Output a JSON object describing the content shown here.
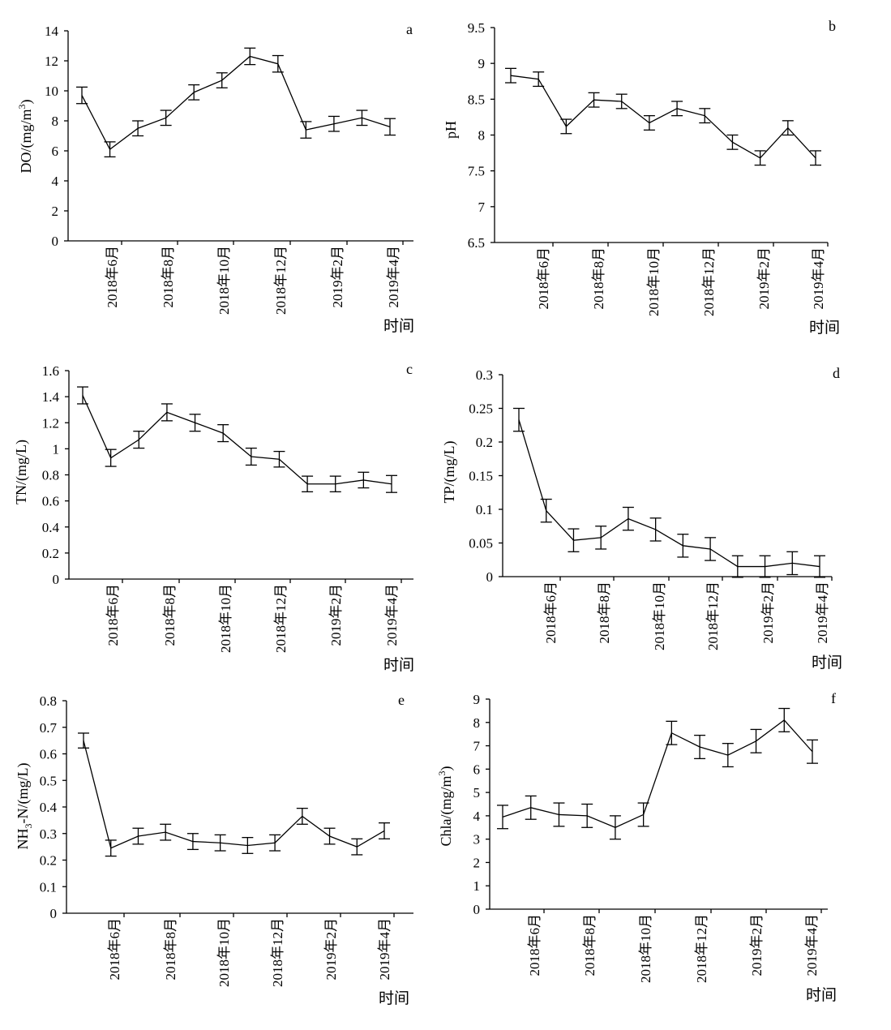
{
  "chart_data": [
    {
      "panel": "a",
      "type": "line",
      "ylabel": "DO/(mg/m3)",
      "ylabel_base": "DO/(mg/m",
      "ylabel_sup": "3",
      "ylabel_tail": ")",
      "xlabel": "时间",
      "ylim": [
        0,
        14
      ],
      "yticks": [
        "0",
        "2",
        "4",
        "6",
        "8",
        "10",
        "12",
        "14"
      ],
      "tick_labels": [
        "2018年6月",
        "2018年8月",
        "2018年10月",
        "2018年12月",
        "2019年2月",
        "2019年4月"
      ],
      "values": [
        9.7,
        6.1,
        7.5,
        8.2,
        9.9,
        10.7,
        12.3,
        11.8,
        7.4,
        7.8,
        8.2,
        7.6
      ],
      "errors": [
        0.55,
        0.5,
        0.5,
        0.5,
        0.5,
        0.5,
        0.55,
        0.55,
        0.55,
        0.5,
        0.5,
        0.55
      ]
    },
    {
      "panel": "b",
      "type": "line",
      "ylabel": "pH",
      "xlabel": "时间",
      "ylim": [
        6.5,
        9.5
      ],
      "yticks": [
        "6.5",
        "7",
        "7.5",
        "8",
        "8.5",
        "9",
        "9.5"
      ],
      "tick_labels": [
        "2018年6月",
        "2018年8月",
        "2018年10月",
        "2018年12月",
        "2019年2月",
        "2019年4月"
      ],
      "values": [
        8.83,
        8.78,
        8.12,
        8.49,
        8.47,
        8.17,
        8.37,
        8.27,
        7.9,
        7.68,
        8.1,
        7.68
      ],
      "errors": [
        0.1,
        0.1,
        0.1,
        0.1,
        0.1,
        0.1,
        0.1,
        0.1,
        0.1,
        0.1,
        0.1,
        0.1
      ]
    },
    {
      "panel": "c",
      "type": "line",
      "ylabel": "TN/(mg/L)",
      "xlabel": "时间",
      "ylim": [
        0,
        1.6
      ],
      "yticks": [
        "0",
        "0.2",
        "0.4",
        "0.6",
        "0.8",
        "1",
        "1.2",
        "1.4",
        "1.6"
      ],
      "tick_labels": [
        "2018年6月",
        "2018年8月",
        "2018年10月",
        "2018年12月",
        "2019年2月",
        "2019年4月"
      ],
      "values": [
        1.41,
        0.93,
        1.07,
        1.28,
        1.2,
        1.12,
        0.94,
        0.92,
        0.73,
        0.73,
        0.76,
        0.73
      ],
      "errors": [
        0.065,
        0.065,
        0.065,
        0.065,
        0.065,
        0.065,
        0.065,
        0.06,
        0.06,
        0.06,
        0.06,
        0.065
      ]
    },
    {
      "panel": "d",
      "type": "line",
      "ylabel": "TP/(mg/L)",
      "xlabel": "时间",
      "ylim": [
        0,
        0.3
      ],
      "yticks": [
        "0",
        "0.05",
        "0.1",
        "0.15",
        "0.2",
        "0.25",
        "0.3"
      ],
      "tick_labels": [
        "2018年6月",
        "2018年8月",
        "2018年10月",
        "2018年12月",
        "2019年2月",
        "2019年4月"
      ],
      "values": [
        0.233,
        0.098,
        0.054,
        0.058,
        0.086,
        0.07,
        0.046,
        0.041,
        0.015,
        0.015,
        0.02,
        0.015
      ],
      "errors": [
        0.017,
        0.017,
        0.017,
        0.017,
        0.017,
        0.017,
        0.017,
        0.017,
        0.016,
        0.016,
        0.017,
        0.016
      ]
    },
    {
      "panel": "e",
      "type": "line",
      "ylabel": "NH3-N/(mg/L)",
      "ylabel_pre": "NH",
      "ylabel_sub": "3",
      "ylabel_post": "-N/(mg/L)",
      "xlabel": "时间",
      "ylim": [
        0,
        0.8
      ],
      "yticks": [
        "0",
        "0.1",
        "0.2",
        "0.3",
        "0.4",
        "0.5",
        "0.6",
        "0.7",
        "0.8"
      ],
      "tick_labels": [
        "2018年6月",
        "2018年8月",
        "2018年10月",
        "2018年12月",
        "2019年2月",
        "2019年4月"
      ],
      "values": [
        0.65,
        0.245,
        0.29,
        0.305,
        0.27,
        0.265,
        0.255,
        0.265,
        0.365,
        0.29,
        0.25,
        0.31
      ],
      "errors": [
        0.028,
        0.03,
        0.03,
        0.03,
        0.03,
        0.03,
        0.03,
        0.03,
        0.03,
        0.03,
        0.03,
        0.03
      ]
    },
    {
      "panel": "f",
      "type": "line",
      "ylabel": "Chla/(mg/m3)",
      "ylabel_base": "Chla/(mg/m",
      "ylabel_sup": "3",
      "ylabel_tail": ")",
      "xlabel": "时间",
      "ylim": [
        0,
        9
      ],
      "yticks": [
        "0",
        "1",
        "2",
        "3",
        "4",
        "5",
        "6",
        "7",
        "8",
        "9"
      ],
      "tick_labels": [
        "2018年6月",
        "2018年8月",
        "2018年10月",
        "2018年12月",
        "2019年2月",
        "2019年4月"
      ],
      "values": [
        3.95,
        4.35,
        4.05,
        4.0,
        3.5,
        4.05,
        7.55,
        6.95,
        6.6,
        7.2,
        8.1,
        6.75
      ],
      "errors": [
        0.5,
        0.5,
        0.5,
        0.5,
        0.5,
        0.5,
        0.5,
        0.5,
        0.5,
        0.5,
        0.5,
        0.5
      ]
    }
  ]
}
